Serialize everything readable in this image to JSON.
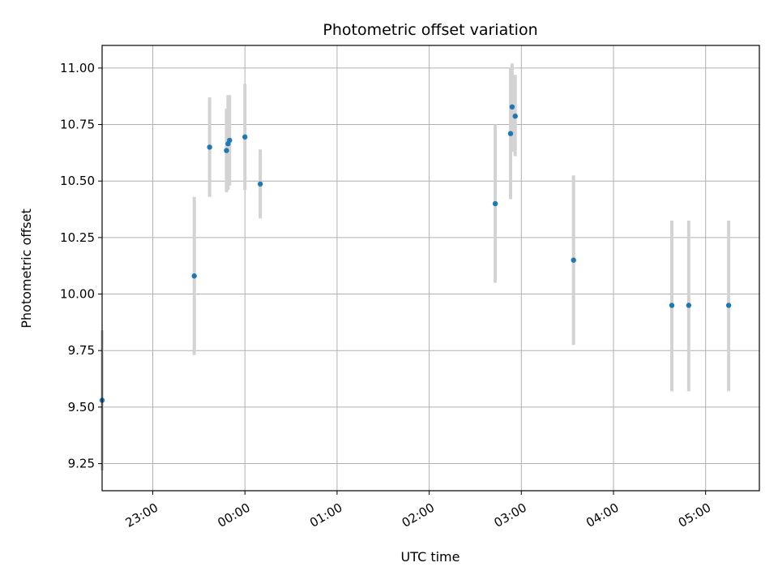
{
  "chart_data": {
    "type": "scatter",
    "title": "Photometric offset variation",
    "xlabel": "UTC time",
    "ylabel": "Photometric offset",
    "x_axis": "time",
    "x_ticks": [
      "23:00",
      "00:00",
      "01:00",
      "02:00",
      "03:00",
      "04:00",
      "05:00"
    ],
    "y_ticks": [
      "9.25",
      "9.50",
      "9.75",
      "10.00",
      "10.25",
      "10.50",
      "10.75",
      "11.00"
    ],
    "xlim": [
      "22:27",
      "05:35"
    ],
    "ylim": [
      9.13,
      11.1
    ],
    "grid": true,
    "colors": {
      "points": "#1f77b4",
      "errorbars": "#d3d3d3",
      "grid": "#b0b0b0"
    },
    "points": [
      {
        "x": "22:27",
        "y": 9.53,
        "yerr_low": 9.22,
        "yerr_high": 9.84
      },
      {
        "x": "23:27",
        "y": 10.08,
        "yerr_low": 9.73,
        "yerr_high": 10.43
      },
      {
        "x": "23:37",
        "y": 10.65,
        "yerr_low": 10.43,
        "yerr_high": 10.87
      },
      {
        "x": "23:48",
        "y": 10.635,
        "yerr_low": 10.45,
        "yerr_high": 10.82
      },
      {
        "x": "23:49",
        "y": 10.665,
        "yerr_low": 10.46,
        "yerr_high": 10.88
      },
      {
        "x": "23:50",
        "y": 10.68,
        "yerr_low": 10.48,
        "yerr_high": 10.88
      },
      {
        "x": "00:00",
        "y": 10.695,
        "yerr_low": 10.46,
        "yerr_high": 10.93
      },
      {
        "x": "00:10",
        "y": 10.487,
        "yerr_low": 10.335,
        "yerr_high": 10.64
      },
      {
        "x": "02:43",
        "y": 10.4,
        "yerr_low": 10.05,
        "yerr_high": 10.75
      },
      {
        "x": "02:53",
        "y": 10.71,
        "yerr_low": 10.42,
        "yerr_high": 11.0
      },
      {
        "x": "02:54",
        "y": 10.828,
        "yerr_low": 10.63,
        "yerr_high": 11.02
      },
      {
        "x": "02:56",
        "y": 10.787,
        "yerr_low": 10.61,
        "yerr_high": 10.97
      },
      {
        "x": "03:34",
        "y": 10.15,
        "yerr_low": 9.775,
        "yerr_high": 10.525
      },
      {
        "x": "04:38",
        "y": 9.95,
        "yerr_low": 9.57,
        "yerr_high": 10.325
      },
      {
        "x": "04:49",
        "y": 9.95,
        "yerr_low": 9.57,
        "yerr_high": 10.325
      },
      {
        "x": "05:15",
        "y": 9.95,
        "yerr_low": 9.57,
        "yerr_high": 10.325
      }
    ]
  }
}
